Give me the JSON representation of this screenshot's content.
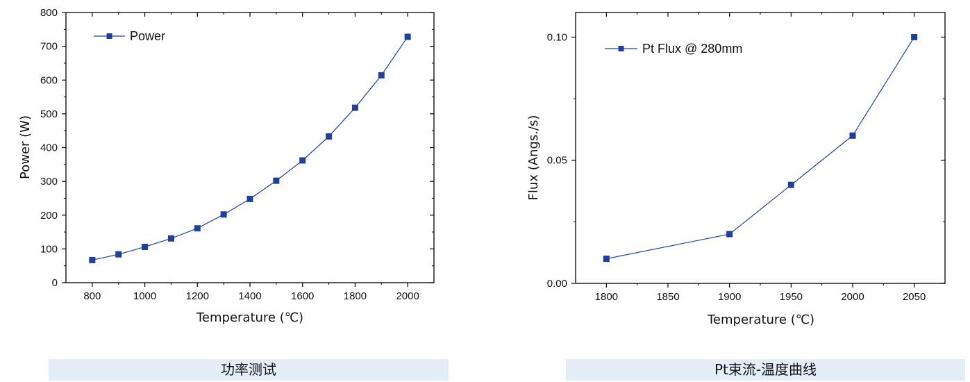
{
  "colors": {
    "series": "#1f3f9b",
    "caption_bg": "#e3eef9"
  },
  "chart_data": [
    {
      "type": "line",
      "title": "",
      "xlabel": "Temperature (℃)",
      "ylabel": "Power (W)",
      "xlim": [
        700,
        2100
      ],
      "ylim": [
        0,
        800
      ],
      "x_ticks": [
        800,
        1000,
        1200,
        1400,
        1600,
        1800,
        2000
      ],
      "y_ticks": [
        0,
        100,
        200,
        300,
        400,
        500,
        600,
        700,
        800
      ],
      "grid": false,
      "legend": "top-left",
      "series": [
        {
          "name": "Power",
          "x": [
            800,
            900,
            1000,
            1100,
            1200,
            1300,
            1400,
            1500,
            1600,
            1700,
            1800,
            1900,
            2000
          ],
          "y": [
            67,
            84,
            106,
            131,
            161,
            202,
            248,
            302,
            362,
            433,
            518,
            614,
            728
          ]
        }
      ]
    },
    {
      "type": "line",
      "title": "",
      "xlabel": "Temperature (℃)",
      "ylabel": "Flux (Angs./s)",
      "xlim": [
        1775,
        2075
      ],
      "ylim": [
        0,
        0.11
      ],
      "x_ticks": [
        1800,
        1850,
        1900,
        1950,
        2000,
        2050
      ],
      "y_ticks": [
        0.0,
        0.05,
        0.1
      ],
      "y_tick_labels": [
        "0.00",
        "0.05",
        "0.10"
      ],
      "grid": false,
      "legend": "top-left",
      "series": [
        {
          "name": "Pt Flux @ 280mm",
          "x": [
            1800,
            1900,
            1950,
            2000,
            2050
          ],
          "y": [
            0.01,
            0.02,
            0.04,
            0.06,
            0.1
          ]
        }
      ]
    }
  ],
  "captions": [
    "功率测试",
    "Pt束流-温度曲线"
  ]
}
